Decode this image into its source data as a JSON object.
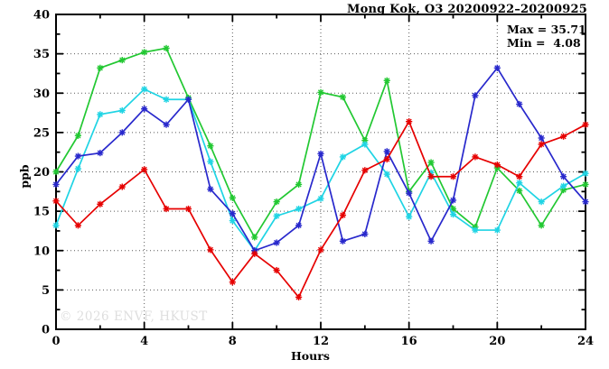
{
  "header": {
    "title": "Mong Kok, O3 20200922–20200925"
  },
  "stats": {
    "max_label": "Max = 35.71",
    "min_label": "Min =  4.08"
  },
  "watermark": "© 2026 ENVF, HKUST",
  "chart_data": {
    "type": "line",
    "title": "Mong Kok, O3 20200922–20200925",
    "xlabel": "Hours",
    "ylabel": "ppb",
    "xlim": [
      0,
      24
    ],
    "ylim": [
      0,
      40
    ],
    "grid": true,
    "x": [
      0,
      1,
      2,
      3,
      4,
      5,
      6,
      7,
      8,
      9,
      10,
      11,
      12,
      13,
      14,
      15,
      16,
      17,
      18,
      19,
      20,
      21,
      22,
      23,
      24
    ],
    "x_major_ticks": [
      0,
      4,
      8,
      12,
      16,
      20,
      24
    ],
    "x_minor_ticks": [
      2,
      6,
      10,
      14,
      18,
      22
    ],
    "y_major_ticks": [
      0,
      5,
      10,
      15,
      20,
      25,
      30,
      35,
      40
    ],
    "y_minor_ticks": [
      2.5,
      7.5,
      12.5,
      17.5,
      22.5,
      27.5,
      32.5,
      37.5
    ],
    "grid_x": [
      4,
      8,
      12,
      16,
      20
    ],
    "grid_y": [
      5,
      10,
      15,
      20,
      25,
      30,
      35
    ],
    "max_value": 35.71,
    "min_value": 4.08,
    "series": [
      {
        "name": "green",
        "color": "#22c832",
        "values": [
          20.0,
          24.6,
          33.2,
          34.2,
          35.2,
          35.71,
          29.4,
          23.3,
          16.7,
          11.7,
          16.2,
          18.4,
          30.1,
          29.5,
          24.0,
          31.6,
          17.5,
          21.2,
          15.3,
          13.0,
          20.5,
          17.6,
          13.2,
          17.7,
          18.4
        ]
      },
      {
        "name": "cyan",
        "color": "#1fd4e4",
        "values": [
          13.2,
          20.4,
          27.3,
          27.8,
          30.5,
          29.2,
          29.2,
          21.3,
          13.8,
          10.0,
          14.4,
          15.3,
          16.6,
          21.9,
          23.5,
          19.7,
          14.3,
          19.9,
          14.6,
          12.6,
          12.6,
          18.6,
          16.2,
          18.2,
          19.8
        ]
      },
      {
        "name": "blue",
        "color": "#2828cc",
        "values": [
          18.4,
          22.0,
          22.4,
          25.0,
          28.0,
          26.0,
          29.2,
          17.8,
          14.7,
          10.0,
          11.0,
          13.2,
          22.3,
          11.2,
          12.1,
          22.6,
          17.3,
          11.2,
          16.4,
          29.7,
          33.2,
          28.6,
          24.3,
          19.4,
          16.2
        ]
      },
      {
        "name": "red",
        "color": "#e60000",
        "values": [
          16.3,
          13.2,
          15.9,
          18.1,
          20.3,
          15.3,
          15.3,
          10.1,
          6.0,
          9.6,
          7.5,
          4.08,
          10.1,
          14.5,
          20.2,
          21.6,
          26.4,
          19.4,
          19.4,
          21.9,
          20.9,
          19.4,
          23.5,
          24.5,
          26.0
        ]
      }
    ]
  }
}
